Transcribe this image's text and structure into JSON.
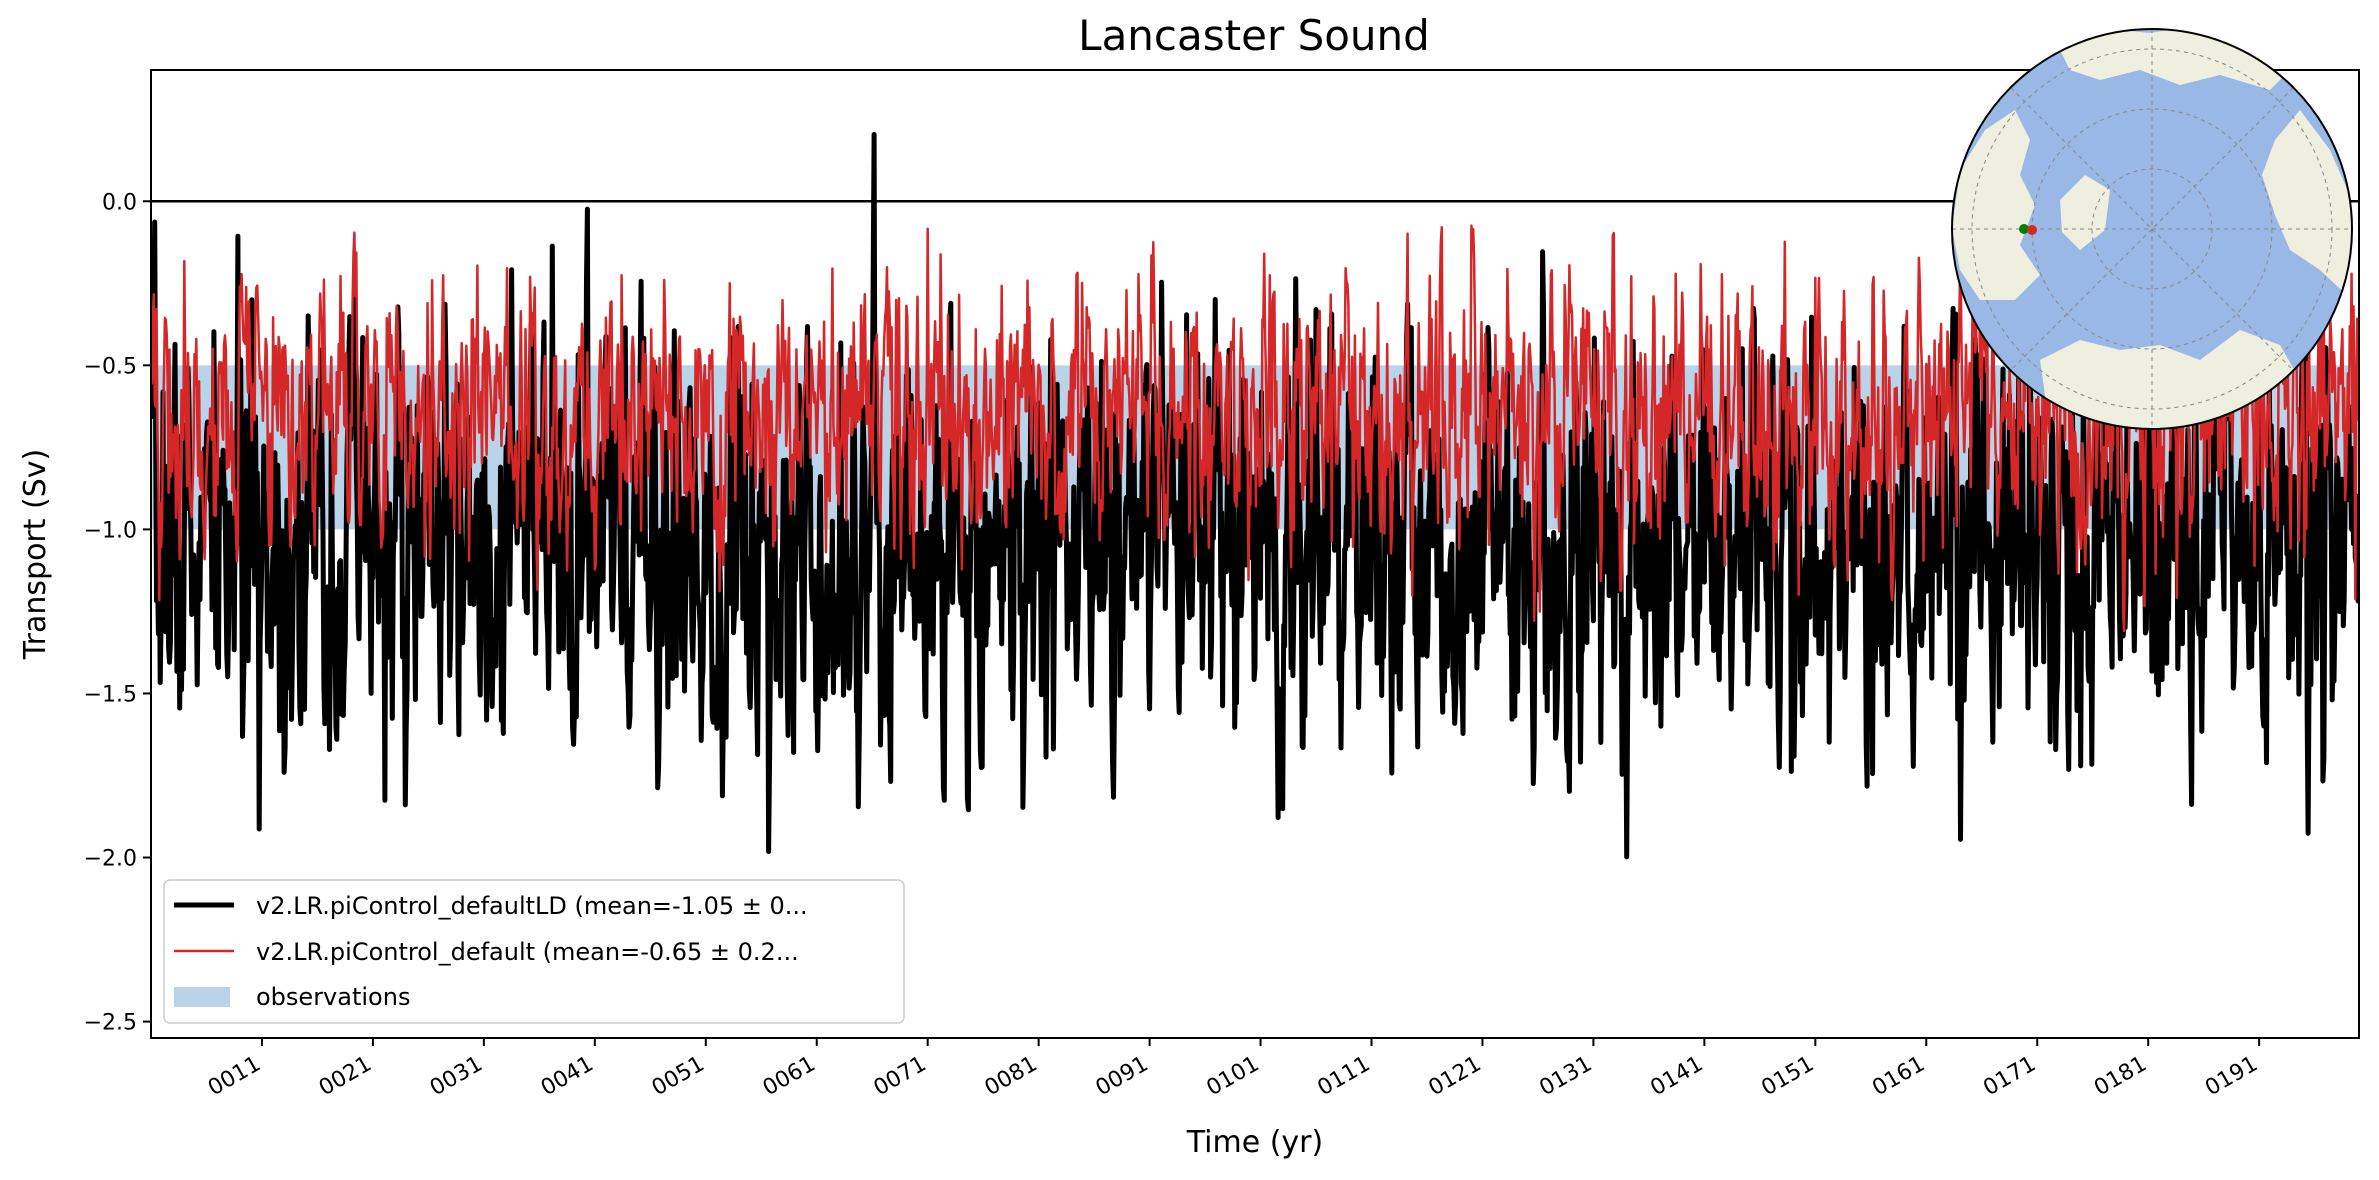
{
  "chart_data": {
    "type": "line",
    "title": "Lancaster Sound",
    "xlabel": "Time (yr)",
    "ylabel": "Transport (Sv)",
    "xlim": [
      1,
      200
    ],
    "ylim": [
      -2.55,
      0.4
    ],
    "x_ticks": [
      11,
      21,
      31,
      41,
      51,
      61,
      71,
      81,
      91,
      101,
      111,
      121,
      131,
      141,
      151,
      161,
      171,
      181,
      191
    ],
    "x_tick_labels": [
      "0011",
      "0021",
      "0031",
      "0041",
      "0051",
      "0061",
      "0071",
      "0081",
      "0091",
      "0101",
      "0111",
      "0121",
      "0131",
      "0141",
      "0151",
      "0161",
      "0171",
      "0181",
      "0191"
    ],
    "y_ticks": [
      0.0,
      -0.5,
      -1.0,
      -1.5,
      -2.0,
      -2.5
    ],
    "y_tick_labels": [
      "0.0",
      "−0.5",
      "−1.0",
      "−1.5",
      "−2.0",
      "−2.5"
    ],
    "zero_line": 0.0,
    "observations": {
      "name": "observations",
      "band": [
        -1.0,
        -0.5
      ],
      "color": "#b9d3e8"
    },
    "series": [
      {
        "name": "v2.LR.piControl_defaultLD (mean=-1.05 ± 0...",
        "color": "#000000",
        "mean": -1.05,
        "std": 0.3,
        "seed": 7,
        "points_per_year": 12,
        "linewidth": 5
      },
      {
        "name": "v2.LR.piControl_default (mean=-0.65 ± 0.2...",
        "color": "#d62728",
        "mean": -0.65,
        "std": 0.2,
        "seed": 19,
        "points_per_year": 12,
        "linewidth": 2.5
      }
    ],
    "legend_position": "lower-left",
    "inset_map": {
      "description": "north-polar-stereographic",
      "ocean_color": "#9ab8e5",
      "land_color": "#efefdf",
      "marker_colors": [
        "#008000",
        "#d62728"
      ]
    }
  }
}
